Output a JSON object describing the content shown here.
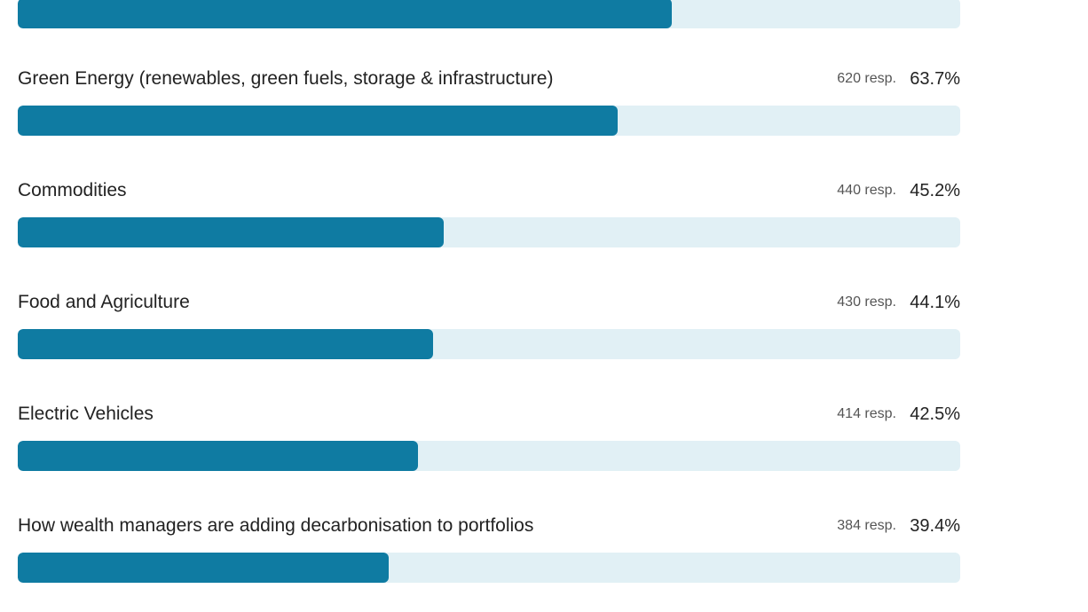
{
  "theme": {
    "fill_color": "#0f7ba2",
    "track_color": "#e1f0f5"
  },
  "top_bar": {
    "fill_fraction": 0.694
  },
  "rows": [
    {
      "label": "Green Energy (renewables, green fuels, storage & infrastructure)",
      "responses": "620 resp.",
      "percent": "63.7%",
      "fill_fraction": 0.637
    },
    {
      "label": "Commodities",
      "responses": "440 resp.",
      "percent": "45.2%",
      "fill_fraction": 0.452
    },
    {
      "label": "Food and Agriculture",
      "responses": "430 resp.",
      "percent": "44.1%",
      "fill_fraction": 0.441
    },
    {
      "label": "Electric Vehicles",
      "responses": "414 resp.",
      "percent": "42.5%",
      "fill_fraction": 0.425
    },
    {
      "label": "How wealth managers are adding decarbonisation to portfolios",
      "responses": "384 resp.",
      "percent": "39.4%",
      "fill_fraction": 0.394
    }
  ]
}
